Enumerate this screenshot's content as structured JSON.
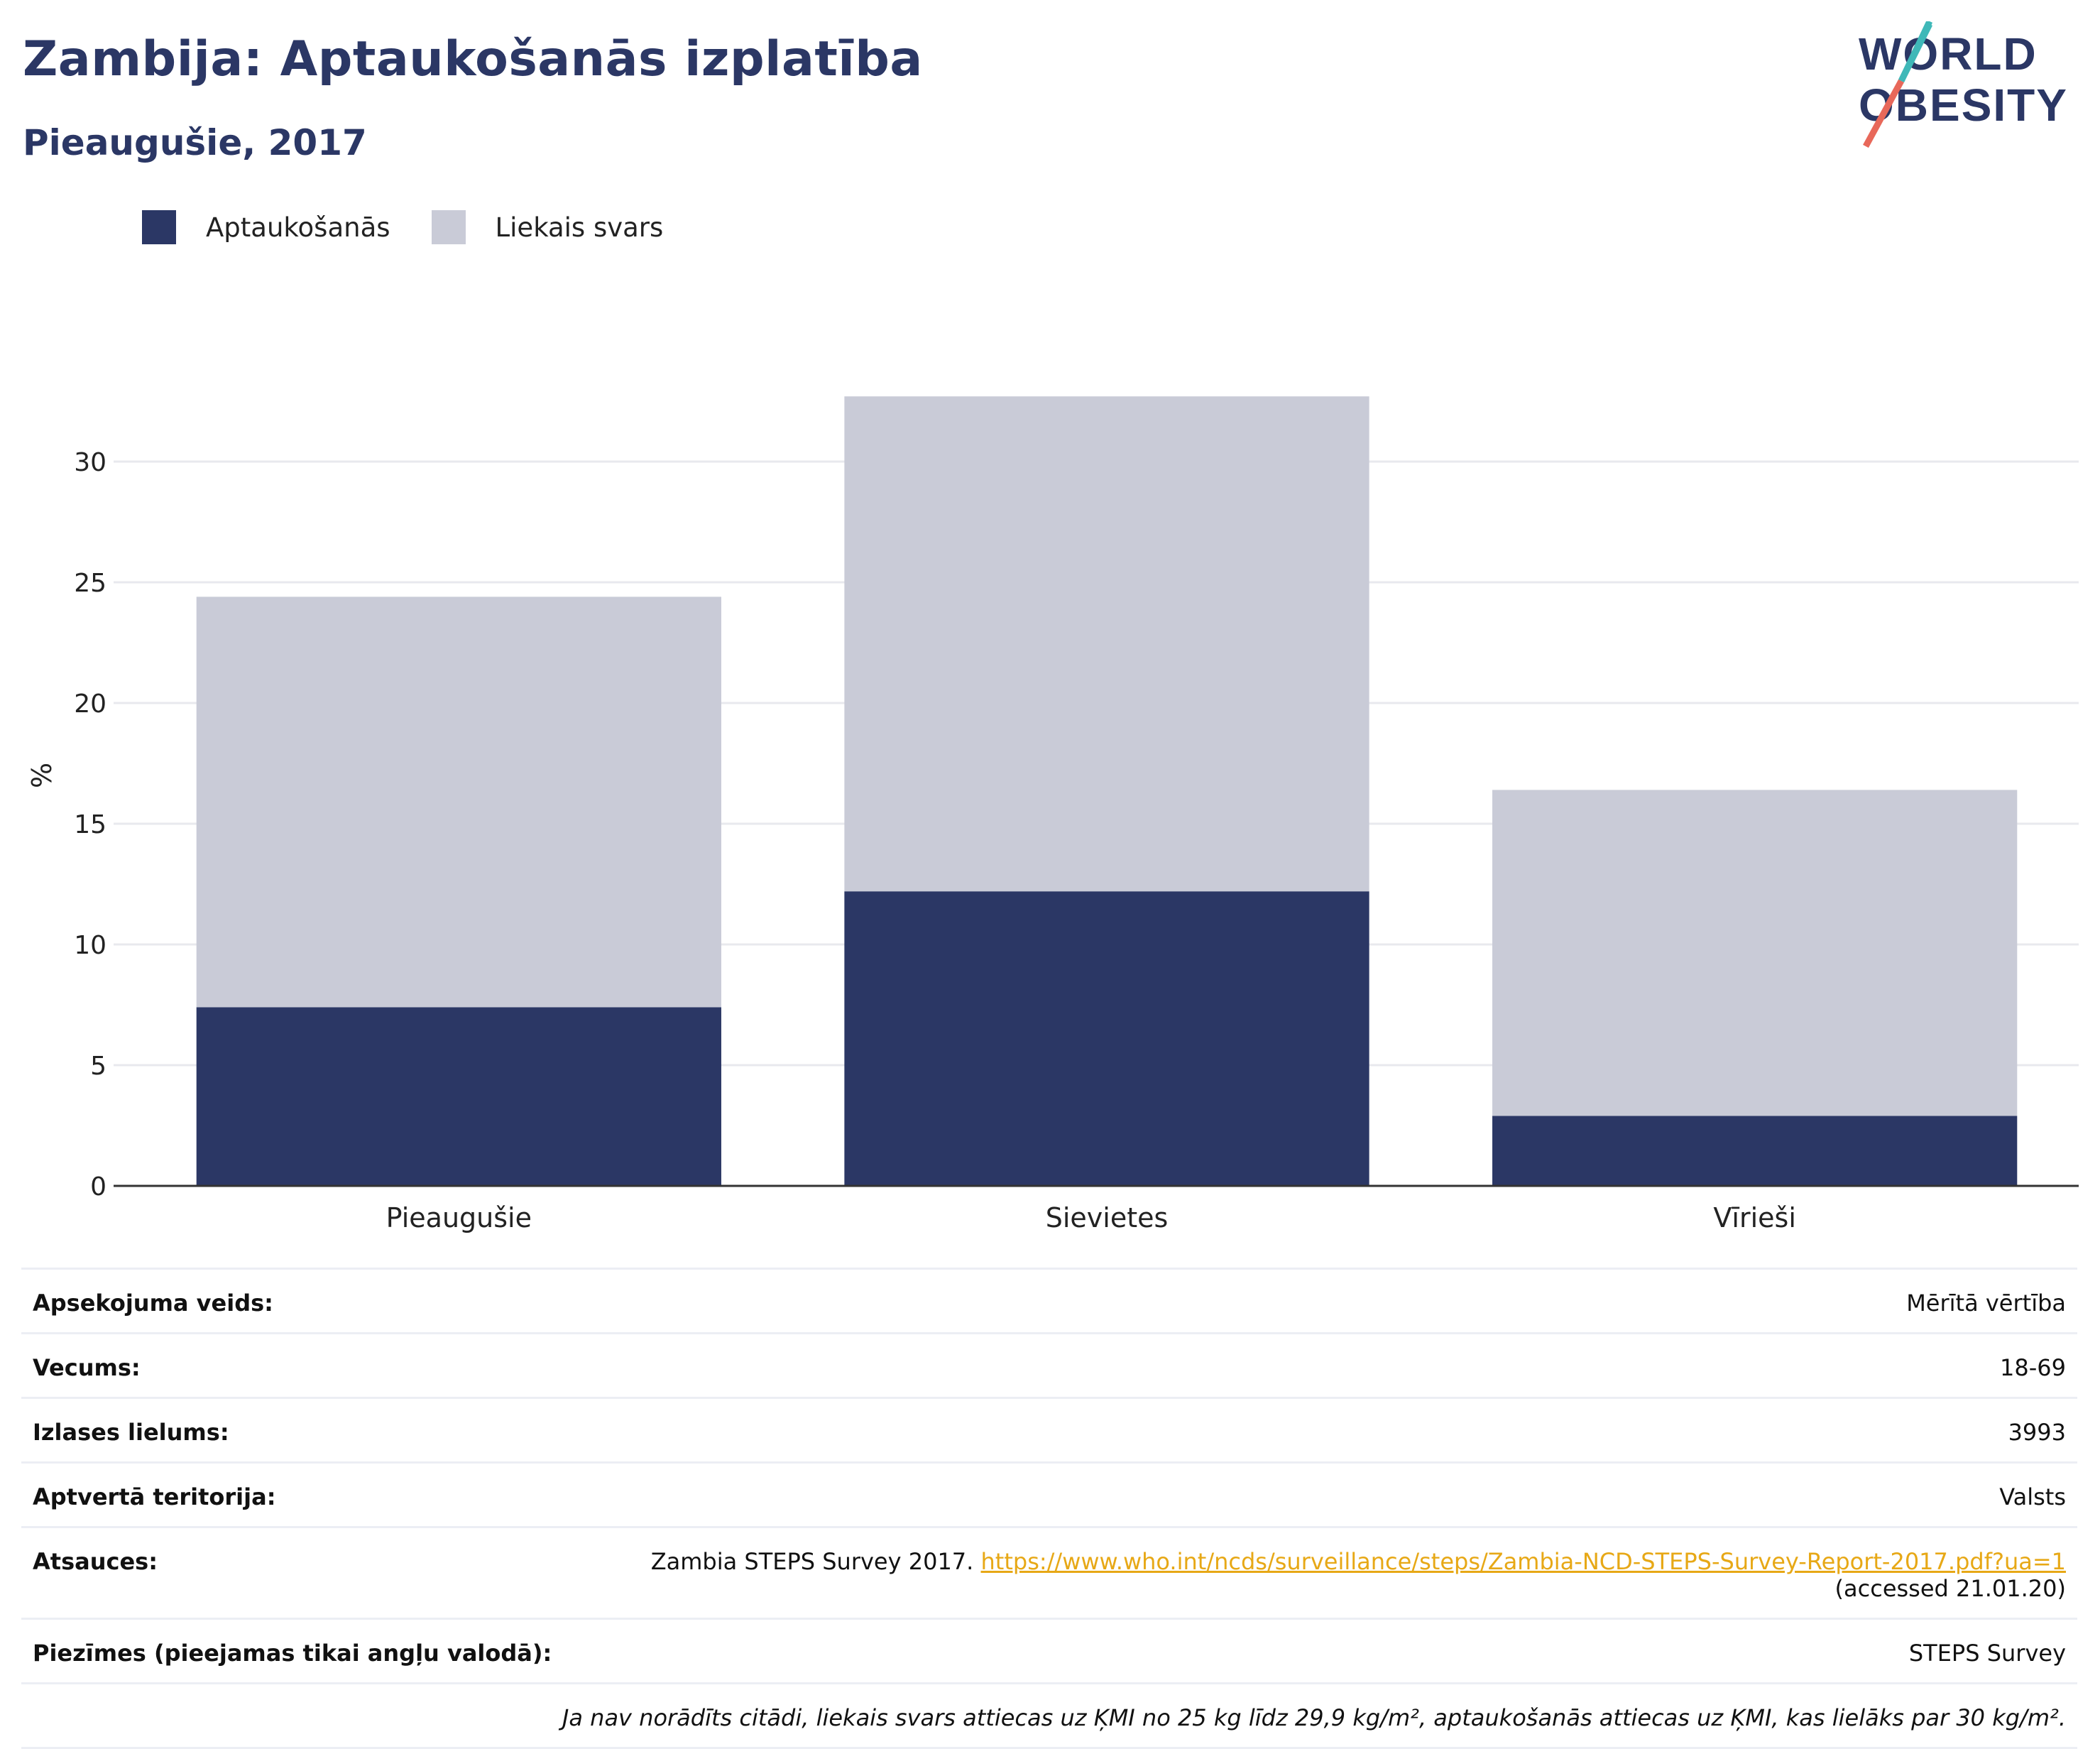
{
  "title": "Zambija: Aptaukošanās izplatība",
  "subtitle": "Pieaugušie, 2017",
  "logo": {
    "line1": "WORLD",
    "line2": "OBESITY"
  },
  "colors": {
    "obesity": "#2b3765",
    "overweight": "#c9cbd7",
    "title": "#2b3765",
    "link": "#e7a816"
  },
  "legend": [
    {
      "label": "Aptaukošanās",
      "color": "#2b3765"
    },
    {
      "label": "Liekais svars",
      "color": "#c9cbd7"
    }
  ],
  "chart_data": {
    "type": "bar",
    "stacked": true,
    "categories": [
      "Pieaugušie",
      "Sievietes",
      "Vīrieši"
    ],
    "series": [
      {
        "name": "Aptaukošanās",
        "values": [
          7.4,
          12.2,
          2.9
        ]
      },
      {
        "name": "Liekais svars",
        "values": [
          17.0,
          20.5,
          13.5
        ]
      }
    ],
    "ylabel": "%",
    "ylim": [
      0,
      34
    ],
    "yticks": [
      0,
      5,
      10,
      15,
      20,
      25,
      30
    ],
    "grid": true,
    "legend_position": "top-left"
  },
  "info": {
    "survey_type": {
      "label": "Apsekojuma veids:",
      "value": "Mērītā vērtība"
    },
    "age": {
      "label": "Vecums:",
      "value": "18-69"
    },
    "sample_size": {
      "label": "Izlases lielums:",
      "value": "3993"
    },
    "coverage": {
      "label": "Aptvertā teritorija:",
      "value": "Valsts"
    },
    "references": {
      "label": "Atsauces:",
      "text": "Zambia STEPS Survey 2017. ",
      "link": "https://www.who.int/ncds/surveillance/steps/Zambia-NCD-STEPS-Survey-Report-2017.pdf?ua=1",
      "accessed": "(accessed 21.01.20)"
    },
    "notes": {
      "label": "Piezīmes (pieejamas tikai angļu valodā):",
      "value": "STEPS Survey"
    },
    "footnote": "Ja nav norādīts citādi, liekais svars attiecas uz ĶMI no 25 kg līdz 29,9 kg/m², aptaukošanās attiecas uz ĶMI, kas lielāks par 30 kg/m²."
  }
}
